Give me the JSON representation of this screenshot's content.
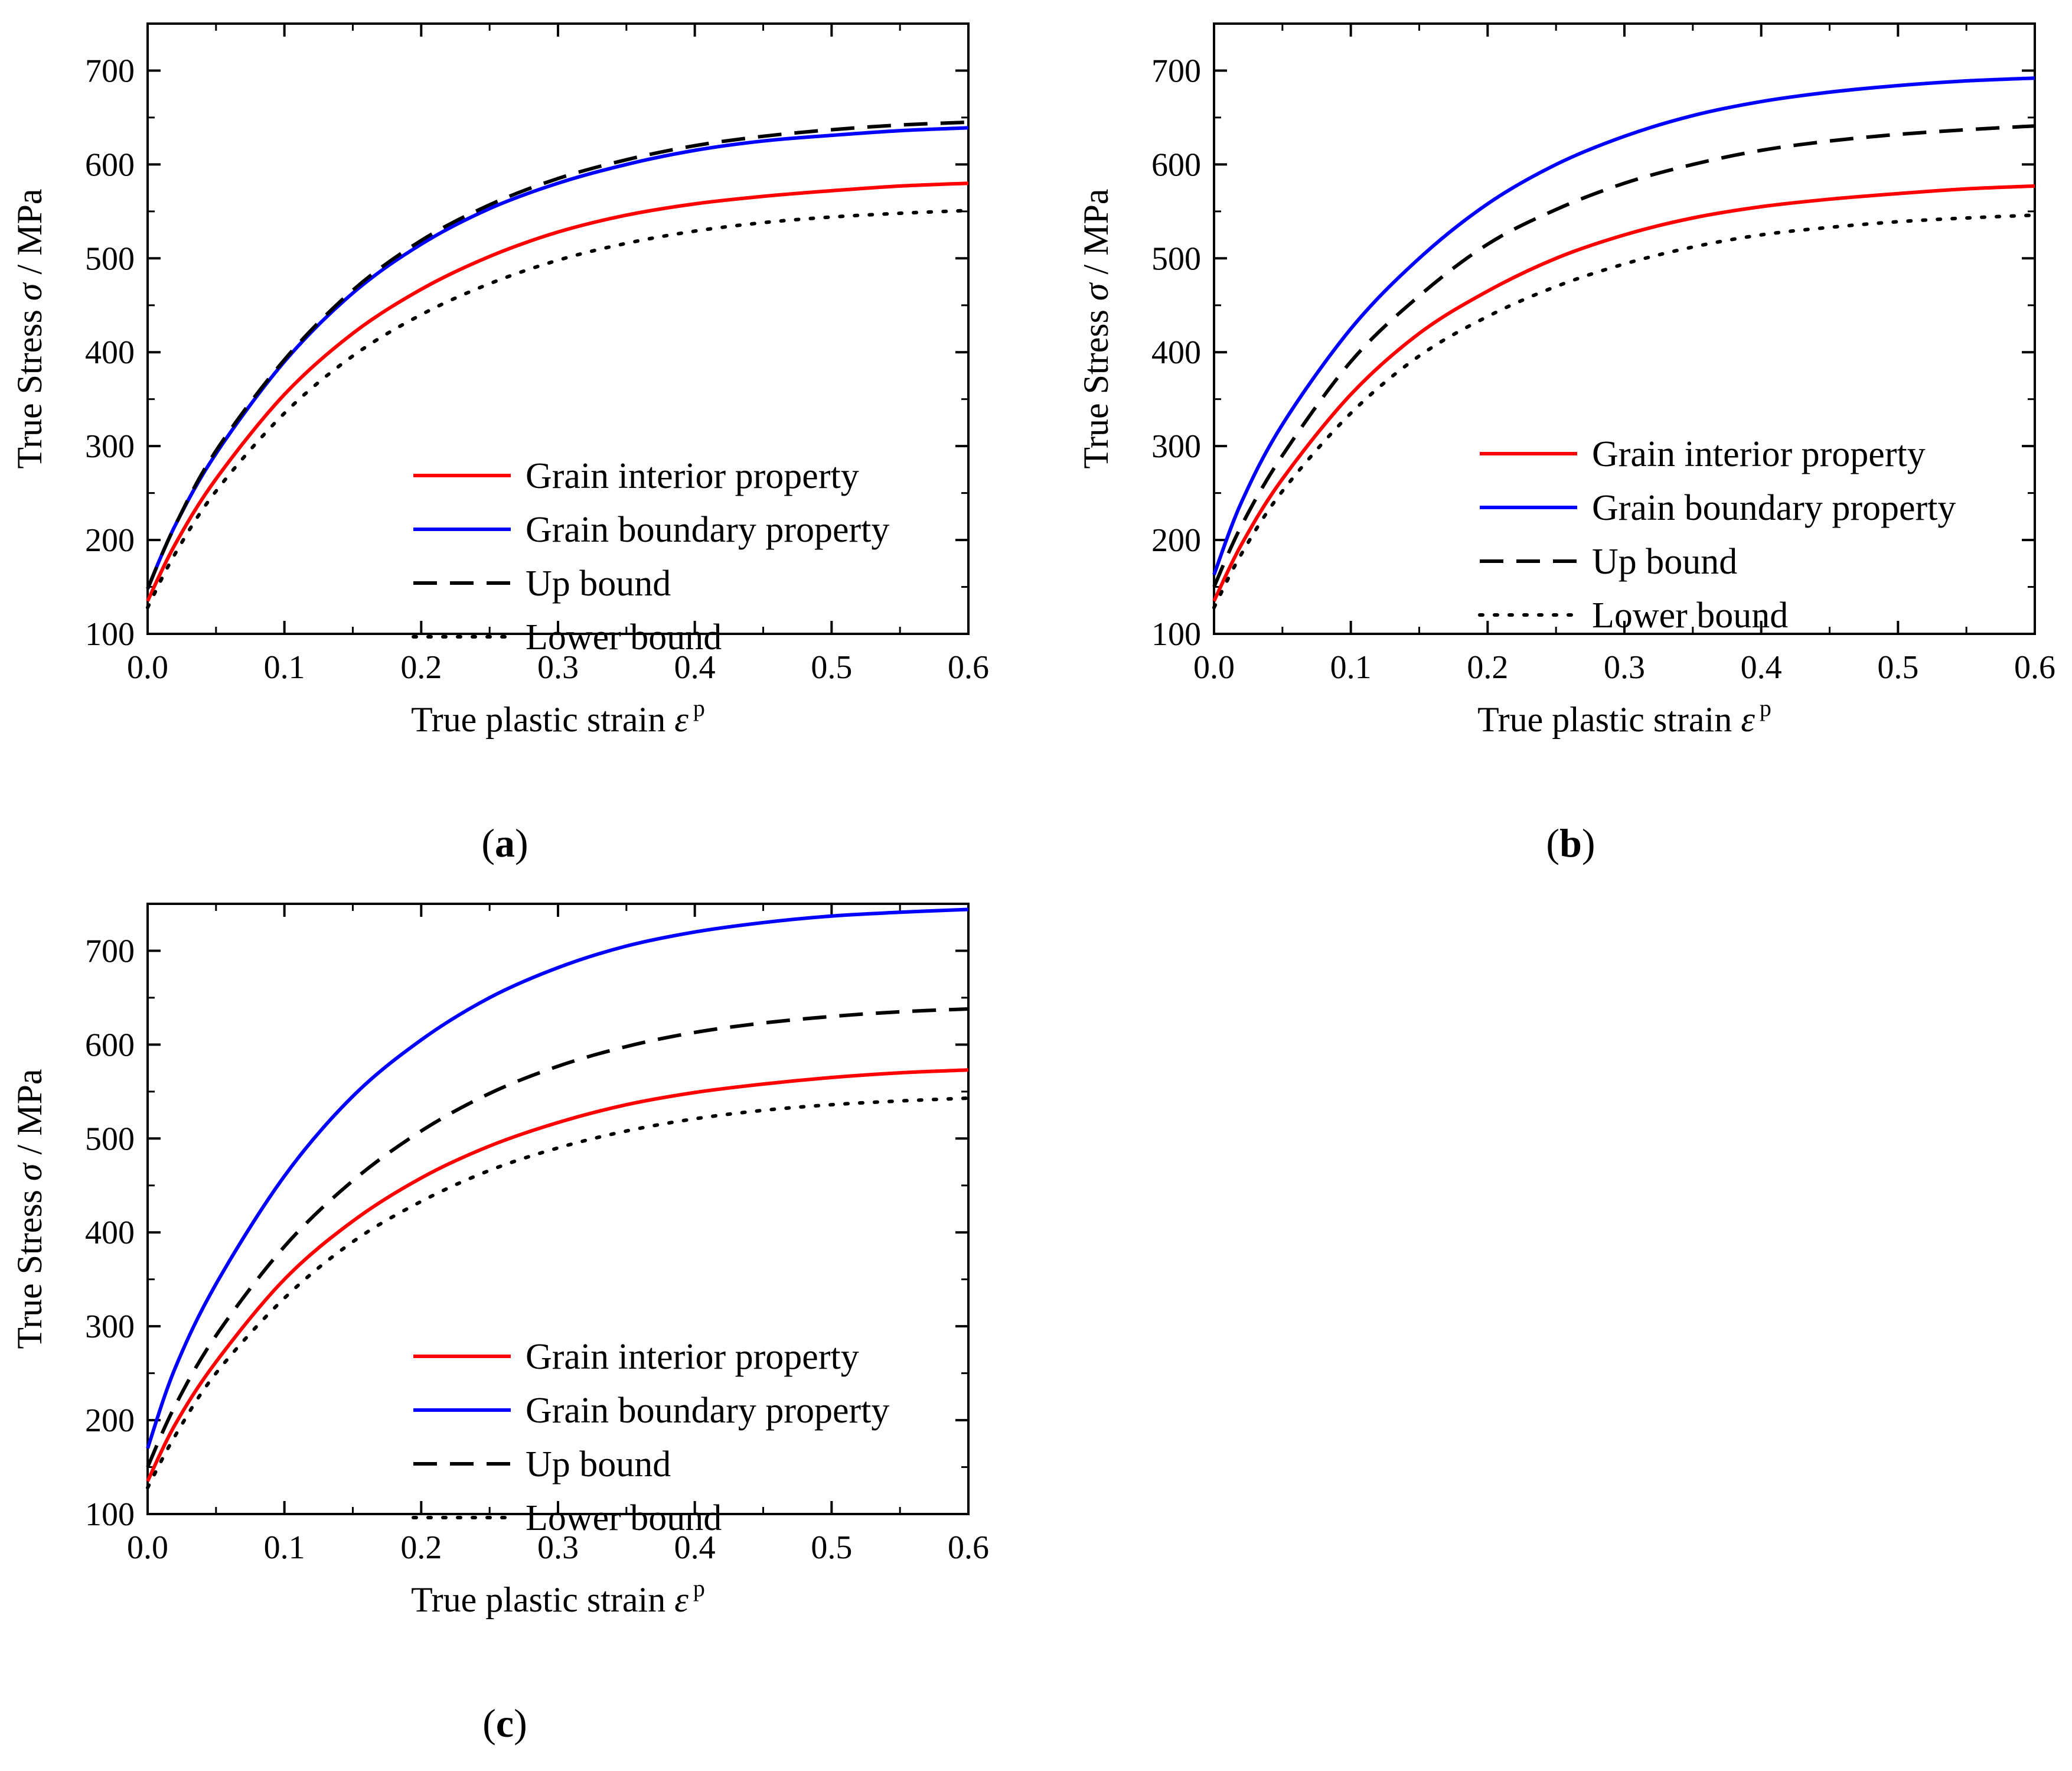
{
  "figure": {
    "panel_captions": [
      "a",
      "b",
      "c"
    ]
  },
  "chart_data": [
    {
      "type": "line",
      "panel": "(a)",
      "title": "",
      "xlabel": "True plastic strain",
      "xlabel_symbol": "ε",
      "xlabel_superscript": "p",
      "ylabel": "True Stress",
      "ylabel_symbol": "σ",
      "ylabel_unit": " / MPa",
      "xlim": [
        0,
        0.6
      ],
      "ylim": [
        100,
        750
      ],
      "xticks": [
        0.0,
        0.1,
        0.2,
        0.3,
        0.4,
        0.5,
        0.6
      ],
      "xtick_labels": [
        "0.0",
        "0.1",
        "0.2",
        "0.3",
        "0.4",
        "0.5",
        "0.6"
      ],
      "yticks": [
        100,
        200,
        300,
        400,
        500,
        600,
        700
      ],
      "ytick_labels": [
        "100",
        "200",
        "300",
        "400",
        "500",
        "600",
        "700"
      ],
      "grid": false,
      "legend_position": "bottom-right",
      "x": [
        0,
        0.02,
        0.05,
        0.1,
        0.15,
        0.2,
        0.25,
        0.3,
        0.35,
        0.4,
        0.45,
        0.5,
        0.55,
        0.6
      ],
      "series": [
        {
          "name": "Grain interior property",
          "color": "#ff0000",
          "style": "solid",
          "values": [
            135,
            195,
            265,
            355,
            420,
            467,
            502,
            528,
            546,
            558,
            566,
            572,
            577,
            580
          ]
        },
        {
          "name": "Grain boundary property",
          "color": "#0000ff",
          "style": "solid",
          "values": [
            148,
            215,
            292,
            390,
            463,
            515,
            553,
            580,
            600,
            615,
            625,
            631,
            636,
            639
          ]
        },
        {
          "name": "Up bound",
          "color": "#000000",
          "style": "dashed",
          "values": [
            148,
            215,
            295,
            392,
            466,
            519,
            557,
            585,
            605,
            620,
            630,
            637,
            642,
            645
          ]
        },
        {
          "name": "Lower bound",
          "color": "#000000",
          "style": "dotted",
          "values": [
            128,
            185,
            252,
            335,
            396,
            440,
            473,
            498,
            516,
            529,
            538,
            544,
            548,
            551
          ]
        }
      ]
    },
    {
      "type": "line",
      "panel": "(b)",
      "title": "",
      "xlabel": "True plastic strain",
      "xlabel_symbol": "ε",
      "xlabel_superscript": "p",
      "ylabel": "True Stress",
      "ylabel_symbol": "σ",
      "ylabel_unit": " / MPa",
      "xlim": [
        0,
        0.6
      ],
      "ylim": [
        100,
        750
      ],
      "xticks": [
        0.0,
        0.1,
        0.2,
        0.3,
        0.4,
        0.5,
        0.6
      ],
      "xtick_labels": [
        "0.0",
        "0.1",
        "0.2",
        "0.3",
        "0.4",
        "0.5",
        "0.6"
      ],
      "yticks": [
        100,
        200,
        300,
        400,
        500,
        600,
        700
      ],
      "ytick_labels": [
        "100",
        "200",
        "300",
        "400",
        "500",
        "600",
        "700"
      ],
      "grid": false,
      "legend_position": "center-right",
      "x": [
        0,
        0.02,
        0.05,
        0.1,
        0.15,
        0.2,
        0.25,
        0.3,
        0.35,
        0.4,
        0.45,
        0.5,
        0.55,
        0.6
      ],
      "series": [
        {
          "name": "Grain interior property",
          "color": "#ff0000",
          "style": "solid",
          "values": [
            135,
            195,
            265,
            355,
            420,
            465,
            500,
            525,
            543,
            555,
            563,
            569,
            574,
            577
          ]
        },
        {
          "name": "Grain boundary property",
          "color": "#0000ff",
          "style": "solid",
          "values": [
            163,
            240,
            323,
            425,
            500,
            558,
            600,
            630,
            652,
            667,
            677,
            684,
            689,
            692
          ]
        },
        {
          "name": "Up bound",
          "color": "#000000",
          "style": "dashed",
          "values": [
            150,
            215,
            290,
            390,
            460,
            515,
            552,
            580,
            600,
            615,
            625,
            632,
            637,
            641
          ]
        },
        {
          "name": "Lower bound",
          "color": "#000000",
          "style": "dotted",
          "values": [
            128,
            185,
            252,
            335,
            396,
            438,
            470,
            494,
            512,
            525,
            533,
            539,
            543,
            546
          ]
        }
      ]
    },
    {
      "type": "line",
      "panel": "(c)",
      "title": "",
      "xlabel": "True plastic strain",
      "xlabel_symbol": "ε",
      "xlabel_superscript": "p",
      "ylabel": "True Stress",
      "ylabel_symbol": "σ",
      "ylabel_unit": " / MPa",
      "xlim": [
        0,
        0.6
      ],
      "ylim": [
        100,
        750
      ],
      "xticks": [
        0.0,
        0.1,
        0.2,
        0.3,
        0.4,
        0.5,
        0.6
      ],
      "xtick_labels": [
        "0.0",
        "0.1",
        "0.2",
        "0.3",
        "0.4",
        "0.5",
        "0.6"
      ],
      "yticks": [
        100,
        200,
        300,
        400,
        500,
        600,
        700
      ],
      "ytick_labels": [
        "100",
        "200",
        "300",
        "400",
        "500",
        "600",
        "700"
      ],
      "grid": false,
      "legend_position": "bottom-right",
      "x": [
        0,
        0.02,
        0.05,
        0.1,
        0.15,
        0.2,
        0.25,
        0.3,
        0.35,
        0.4,
        0.45,
        0.5,
        0.55,
        0.6
      ],
      "series": [
        {
          "name": "Grain interior property",
          "color": "#ff0000",
          "style": "solid",
          "values": [
            135,
            195,
            262,
            350,
            412,
            458,
            492,
            517,
            536,
            549,
            558,
            565,
            570,
            573
          ]
        },
        {
          "name": "Grain boundary property",
          "color": "#0000ff",
          "style": "solid",
          "values": [
            170,
            255,
            345,
            460,
            545,
            605,
            650,
            682,
            705,
            720,
            730,
            737,
            741,
            744
          ]
        },
        {
          "name": "Up bound",
          "color": "#000000",
          "style": "dashed",
          "values": [
            150,
            215,
            290,
            385,
            455,
            508,
            548,
            577,
            598,
            613,
            623,
            630,
            635,
            638
          ]
        },
        {
          "name": "Lower bound",
          "color": "#000000",
          "style": "dotted",
          "values": [
            128,
            183,
            250,
            330,
            390,
            433,
            466,
            490,
            508,
            521,
            530,
            536,
            540,
            543
          ]
        }
      ]
    }
  ]
}
